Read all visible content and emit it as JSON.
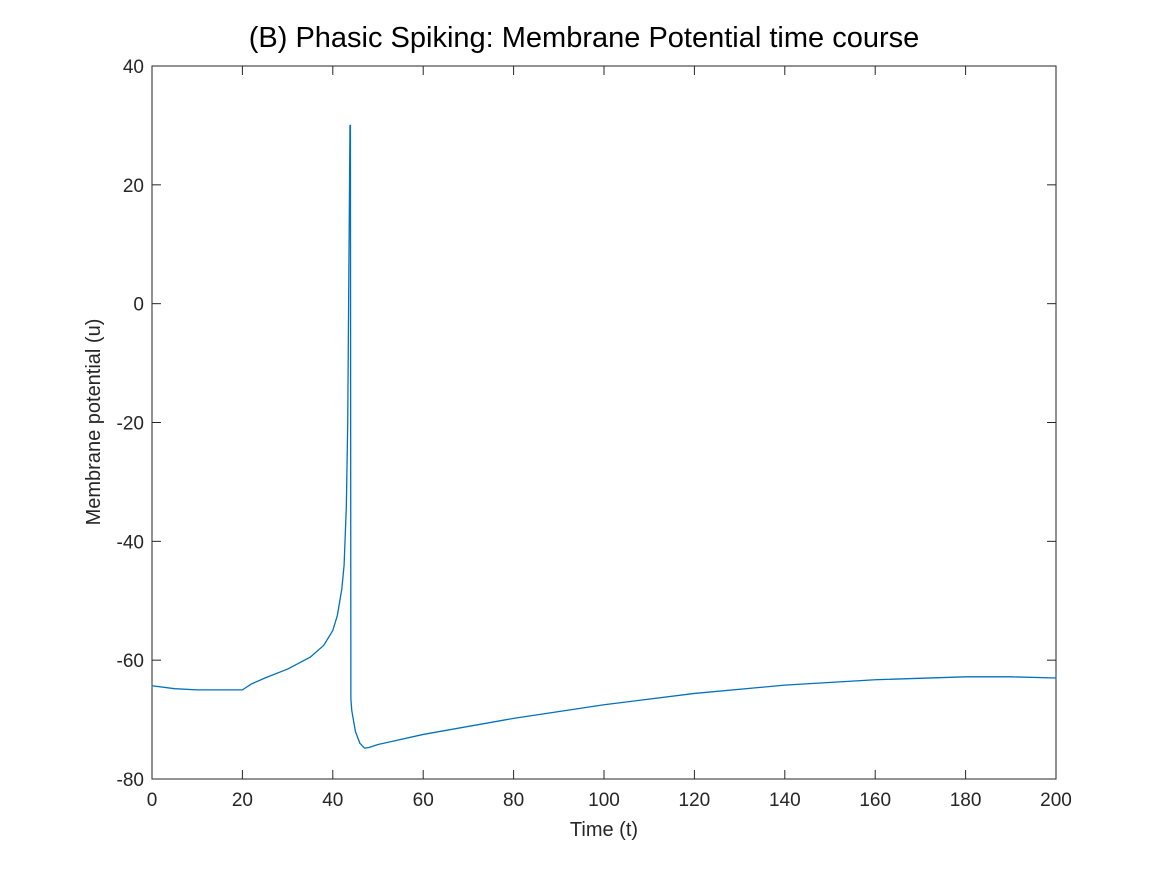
{
  "chart_data": {
    "type": "line",
    "title": "(B) Phasic Spiking: Membrane Potential time course",
    "xlabel": "Time (t)",
    "ylabel": "Membrane potential (u)",
    "xlim": [
      0,
      200
    ],
    "ylim": [
      -80,
      40
    ],
    "xticks": [
      "0",
      "20",
      "40",
      "60",
      "80",
      "100",
      "120",
      "140",
      "160",
      "180",
      "200"
    ],
    "yticks": [
      "-80",
      "-60",
      "-40",
      "-20",
      "0",
      "20",
      "40"
    ],
    "grid": false,
    "line_color": "#0072BD",
    "series": [
      {
        "x": [
          0,
          5,
          10,
          15,
          20,
          22,
          25,
          30,
          35,
          38,
          40,
          41,
          42,
          42.5,
          43,
          43.3,
          43.5,
          43.7,
          43.8,
          43.9,
          44.0,
          44.2,
          45,
          46,
          47,
          48,
          50,
          60,
          80,
          100,
          120,
          140,
          160,
          180,
          190,
          200
        ],
        "y": [
          -64.3,
          -64.8,
          -65.0,
          -65.0,
          -65.0,
          -64.0,
          -63.0,
          -61.5,
          -59.5,
          -57.5,
          -55.0,
          -52.5,
          -48.0,
          -44.0,
          -34.0,
          -20.0,
          0.0,
          20.0,
          30.0,
          30.0,
          -66.5,
          -68.5,
          -72.0,
          -74.0,
          -74.8,
          -74.7,
          -74.2,
          -72.5,
          -69.8,
          -67.5,
          -65.6,
          -64.2,
          -63.3,
          -62.8,
          -62.8,
          -63.0
        ]
      }
    ]
  }
}
